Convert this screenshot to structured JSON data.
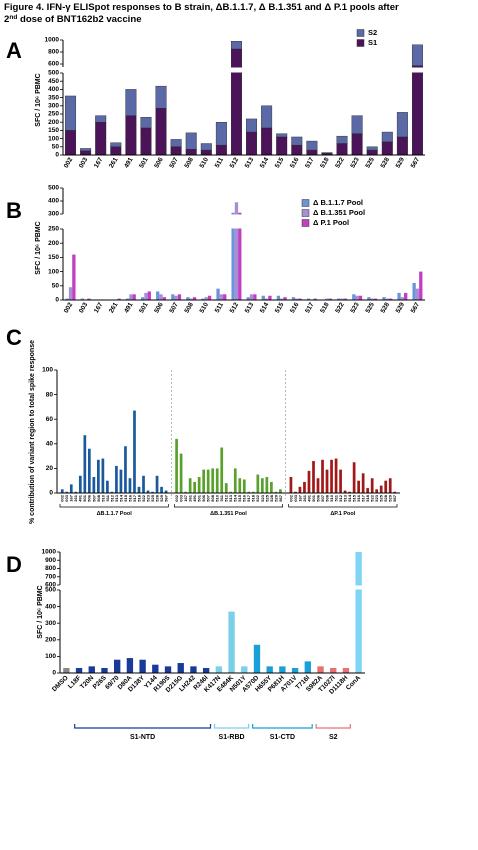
{
  "title": [
    "Figure 4. IFN-γ ELISpot responses to B strain, ΔB.1.1.7, Δ B.1.351 and Δ P.1 pools after",
    "2",
    "nd",
    " dose of BNT162b2 vaccine"
  ],
  "chart_data": [
    {
      "panel": "A",
      "type": "stacked_bar",
      "ylabel": "SFC / 10⁶ PBMC",
      "categories": [
        "002",
        "003",
        "167",
        "261",
        "491",
        "501",
        "506",
        "507",
        "508",
        "510",
        "511",
        "512",
        "513",
        "514",
        "515",
        "516",
        "517",
        "518",
        "522",
        "523",
        "525",
        "528",
        "529",
        "567"
      ],
      "series": [
        {
          "name": "S1",
          "color": "#4b1459",
          "values": [
            150,
            25,
            200,
            50,
            240,
            165,
            285,
            50,
            35,
            30,
            60,
            850,
            140,
            165,
            110,
            60,
            30,
            10,
            70,
            130,
            30,
            80,
            110,
            570
          ]
        },
        {
          "name": "S2",
          "color": "#5b6aa6",
          "values": [
            210,
            15,
            40,
            25,
            160,
            65,
            135,
            45,
            100,
            40,
            140,
            130,
            80,
            135,
            20,
            50,
            55,
            5,
            45,
            110,
            20,
            60,
            150,
            350
          ]
        }
      ],
      "y_segments": [
        {
          "ylim": [
            0,
            500
          ],
          "yticks": [
            0,
            50,
            100,
            150,
            200,
            250,
            300,
            350,
            400,
            450,
            500
          ]
        },
        {
          "ylim": [
            550,
            1000
          ],
          "yticks": [
            600,
            800,
            1000
          ]
        }
      ]
    },
    {
      "panel": "B",
      "type": "grouped_bar",
      "ylabel": "SFC / 10⁶ PBMC",
      "categories": [
        "002",
        "003",
        "167",
        "261",
        "491",
        "501",
        "506",
        "507",
        "508",
        "510",
        "511",
        "512",
        "513",
        "514",
        "515",
        "516",
        "517",
        "518",
        "522",
        "523",
        "525",
        "528",
        "529",
        "567"
      ],
      "series": [
        {
          "name": "Δ B.1.1.7 Pool",
          "color": "#6f93d8",
          "values": [
            5,
            5,
            0,
            0,
            5,
            10,
            30,
            20,
            10,
            5,
            40,
            310,
            10,
            15,
            15,
            10,
            5,
            0,
            5,
            20,
            10,
            10,
            25,
            60
          ]
        },
        {
          "name": "Δ B.1.351 Pool",
          "color": "#a590d8",
          "values": [
            45,
            0,
            0,
            0,
            20,
            25,
            20,
            15,
            5,
            10,
            20,
            390,
            20,
            5,
            5,
            5,
            0,
            5,
            5,
            15,
            5,
            5,
            10,
            40
          ]
        },
        {
          "name": "Δ P.1 Pool",
          "color": "#c23fc4",
          "values": [
            160,
            5,
            0,
            5,
            20,
            30,
            10,
            20,
            10,
            15,
            20,
            310,
            20,
            15,
            10,
            5,
            5,
            5,
            5,
            15,
            5,
            5,
            25,
            100
          ]
        }
      ],
      "y_segments": [
        {
          "ylim": [
            0,
            250
          ],
          "yticks": [
            0,
            50,
            100,
            150,
            200,
            250
          ]
        },
        {
          "ylim": [
            300,
            500
          ],
          "yticks": [
            300,
            400,
            500
          ]
        }
      ]
    },
    {
      "panel": "C",
      "type": "grouped_panels",
      "ylabel": "% contribution of variant region to total spike response",
      "categories": [
        "002",
        "003",
        "167",
        "261",
        "491",
        "501",
        "506",
        "507",
        "508",
        "510",
        "511",
        "512",
        "513",
        "514",
        "515",
        "516",
        "517",
        "518",
        "522",
        "523",
        "525",
        "528",
        "529",
        "567"
      ],
      "series": [
        {
          "name": "ΔB.1.1.7 Pool",
          "color": "#1a5a9c",
          "values": [
            3,
            1,
            7,
            1,
            14,
            47,
            36,
            13,
            27,
            28,
            10,
            1,
            22,
            19,
            38,
            12,
            67,
            5,
            14,
            2,
            1,
            14,
            5,
            2
          ]
        },
        {
          "name": "ΔB.1.351 Pool",
          "color": "#5aa02c",
          "values": [
            44,
            32,
            1,
            12,
            9,
            13,
            19,
            19,
            20,
            20,
            37,
            8,
            1,
            20,
            12,
            11,
            1,
            1,
            15,
            12,
            13,
            9,
            1,
            3
          ]
        },
        {
          "name": "ΔP.1 Pool",
          "color": "#a01818",
          "values": [
            13,
            1,
            5,
            9,
            18,
            26,
            12,
            27,
            19,
            27,
            28,
            19,
            2,
            1,
            25,
            10,
            16,
            4,
            12,
            3,
            6,
            10,
            12,
            1
          ]
        }
      ],
      "ylim": [
        0,
        100
      ],
      "yticks": [
        0,
        20,
        40,
        60,
        80,
        100
      ]
    },
    {
      "panel": "D",
      "type": "segmented_bar",
      "ylabel": "SFC / 10⁶ PBMC",
      "groups": [
        {
          "color": "#888888",
          "categories": [
            "DMSO"
          ],
          "values": [
            30
          ]
        },
        {
          "label": "S1-NTD",
          "color": "#1a3a9a",
          "categories": [
            "L18F",
            "T20N",
            "P26S",
            "69/70",
            "D80A",
            "D138Y",
            "Y144",
            "R190S",
            "D215G",
            "LH242",
            "R246I"
          ],
          "values": [
            30,
            40,
            30,
            80,
            90,
            80,
            50,
            40,
            60,
            40,
            30
          ]
        },
        {
          "label": "S1-RBD",
          "color": "#7ad0e8",
          "categories": [
            "K417N",
            "E484K",
            "N501Y"
          ],
          "values": [
            40,
            370,
            40
          ]
        },
        {
          "label": "S1-CTD",
          "color": "#1a9fd8",
          "categories": [
            "A570D",
            "H655Y",
            "P681H",
            "A701V",
            "T716I"
          ],
          "values": [
            170,
            40,
            40,
            30,
            70
          ]
        },
        {
          "label": "S2",
          "color": "#e87070",
          "categories": [
            "S982A",
            "T1027I",
            "D1118H"
          ],
          "values": [
            40,
            30,
            30
          ]
        },
        {
          "color": "#80d4f4",
          "categories": [
            "ConA"
          ],
          "values": [
            1000
          ]
        }
      ],
      "y_segments": [
        {
          "ylim": [
            0,
            500
          ],
          "yticks": [
            0,
            100,
            200,
            300,
            400,
            500
          ]
        },
        {
          "ylim": [
            600,
            1000
          ],
          "yticks": [
            600,
            700,
            800,
            900,
            1000
          ]
        }
      ]
    }
  ]
}
